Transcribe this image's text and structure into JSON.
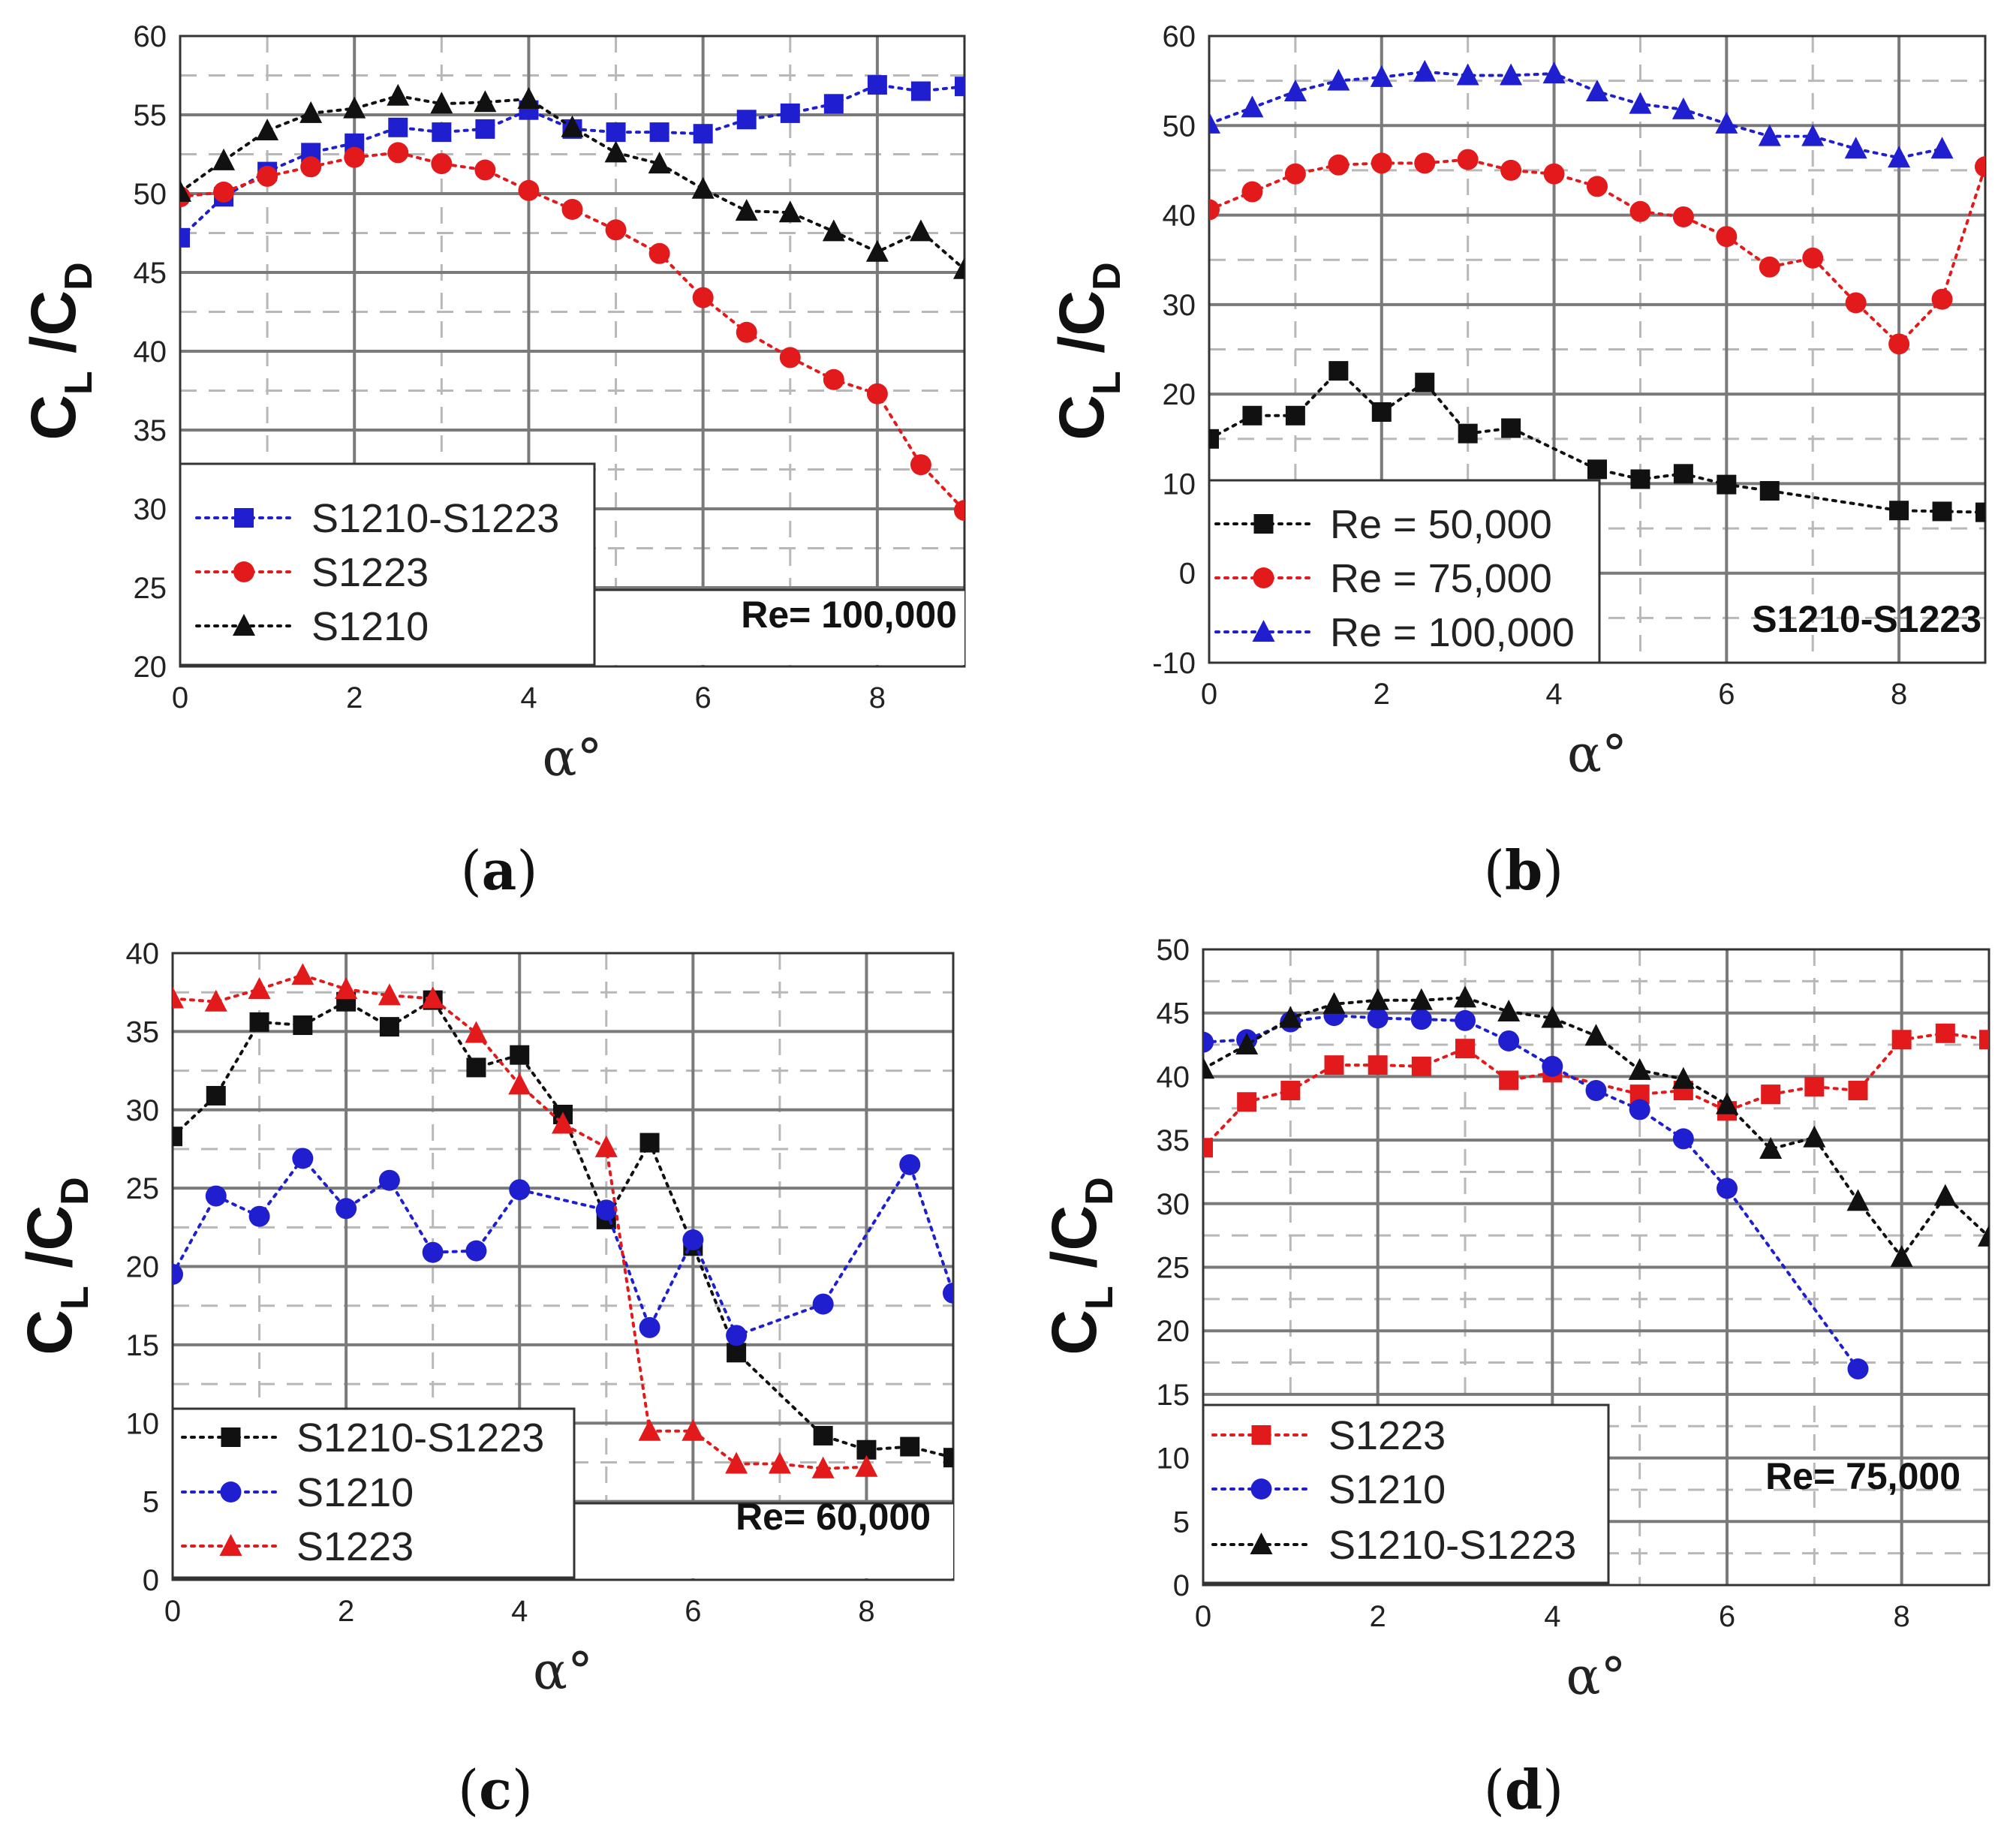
{
  "colors": {
    "black": "#111111",
    "red": "#e31a1c",
    "blue": "#1f1fd0"
  },
  "chart_data": [
    {
      "panel": "a",
      "type": "line",
      "xlabel": "α°",
      "ylabel_main": "C",
      "ylabel_sub1": "L",
      "ylabel_sep": "/C",
      "ylabel_sub2": "D",
      "xlim": [
        0,
        9
      ],
      "ylim": [
        20,
        60
      ],
      "xticks": [
        0,
        2,
        4,
        6,
        8
      ],
      "yticks": [
        20,
        25,
        30,
        35,
        40,
        45,
        50,
        55,
        60
      ],
      "annotation": "Re= 100,000",
      "series": [
        {
          "name": "S1210-S1223",
          "color": "blue",
          "marker": "square",
          "x": [
            0,
            0.5,
            1,
            1.5,
            2,
            2.5,
            3,
            3.5,
            4,
            4.5,
            5,
            5.5,
            6,
            6.5,
            7,
            7.5,
            8,
            8.5,
            9
          ],
          "y": [
            47.2,
            49.8,
            51.4,
            52.6,
            53.2,
            54.2,
            53.9,
            54.1,
            55.3,
            54.1,
            53.9,
            53.9,
            53.8,
            54.7,
            55.1,
            55.7,
            56.9,
            56.5,
            56.8
          ]
        },
        {
          "name": "S1223",
          "color": "red",
          "marker": "circle",
          "x": [
            0,
            0.5,
            1,
            1.5,
            2,
            2.5,
            3,
            3.5,
            4,
            4.5,
            5,
            5.5,
            6,
            6.5,
            7,
            7.5,
            8,
            8.5,
            9
          ],
          "y": [
            49.8,
            50.1,
            51.1,
            51.7,
            52.3,
            52.6,
            51.9,
            51.5,
            50.2,
            49.0,
            47.7,
            46.2,
            43.4,
            41.2,
            39.6,
            38.2,
            37.3,
            32.8,
            29.9
          ]
        },
        {
          "name": "S1210",
          "color": "black",
          "marker": "triangle",
          "x": [
            0,
            0.5,
            1,
            1.5,
            2,
            2.5,
            3,
            3.5,
            4,
            4.5,
            5,
            5.5,
            6,
            6.5,
            7,
            7.5,
            8,
            8.5,
            9
          ],
          "y": [
            50.1,
            52.1,
            54.0,
            55.1,
            55.4,
            56.2,
            55.7,
            55.8,
            56.0,
            54.2,
            52.6,
            51.9,
            50.3,
            48.9,
            48.8,
            47.6,
            46.3,
            47.6,
            45.2
          ]
        }
      ]
    },
    {
      "panel": "b",
      "type": "line",
      "xlabel": "α°",
      "ylabel_main": "C",
      "ylabel_sub1": "L",
      "ylabel_sep": "/C",
      "ylabel_sub2": "D",
      "xlim": [
        0,
        9
      ],
      "ylim": [
        -10,
        60
      ],
      "xticks": [
        0,
        2,
        4,
        6,
        8
      ],
      "yticks": [
        -10,
        0,
        10,
        20,
        30,
        40,
        50,
        60
      ],
      "annotation": "S1210-S1223",
      "series": [
        {
          "name": "Re = 50,000",
          "color": "black",
          "marker": "square",
          "x": [
            0,
            0.5,
            1,
            1.5,
            2,
            2.5,
            3,
            3.5,
            4.5,
            5,
            5.5,
            6,
            6.5,
            8,
            8.5,
            9
          ],
          "y": [
            15.0,
            17.6,
            17.6,
            22.6,
            18.0,
            21.3,
            15.6,
            16.2,
            11.6,
            10.5,
            11.1,
            9.9,
            9.2,
            7.0,
            6.9,
            6.8
          ]
        },
        {
          "name": "Re = 75,000",
          "color": "red",
          "marker": "circle",
          "x": [
            0,
            0.5,
            1,
            1.5,
            2,
            2.5,
            3,
            3.5,
            4,
            4.5,
            5,
            5.5,
            6,
            6.5,
            7,
            7.5,
            8,
            8.5,
            9
          ],
          "y": [
            40.6,
            42.6,
            44.6,
            45.6,
            45.8,
            45.8,
            46.2,
            45.0,
            44.6,
            43.2,
            40.4,
            39.8,
            37.6,
            34.2,
            35.2,
            30.2,
            25.6,
            30.6,
            45.4
          ]
        },
        {
          "name": "Re = 100,000",
          "color": "blue",
          "marker": "triangle",
          "x": [
            0,
            0.5,
            1,
            1.5,
            2,
            2.5,
            3,
            3.5,
            4,
            4.5,
            5,
            5.5,
            6,
            6.5,
            7,
            7.5,
            8,
            8.5
          ],
          "y": [
            50.2,
            52.0,
            53.8,
            55.0,
            55.4,
            56.0,
            55.6,
            55.6,
            55.8,
            53.8,
            52.4,
            51.8,
            50.2,
            48.8,
            48.8,
            47.4,
            46.4,
            47.4
          ]
        }
      ]
    },
    {
      "panel": "c",
      "type": "line",
      "xlabel": "α°",
      "ylabel_main": "C",
      "ylabel_sub1": "L",
      "ylabel_sep": "/C",
      "ylabel_sub2": "D",
      "xlim": [
        0,
        9
      ],
      "ylim": [
        0,
        40
      ],
      "xticks": [
        0,
        2,
        4,
        6,
        8
      ],
      "yticks": [
        0,
        5,
        10,
        15,
        20,
        25,
        30,
        35,
        40
      ],
      "annotation": "Re= 60,000",
      "series": [
        {
          "name": "S1210-S1223",
          "color": "black",
          "marker": "square",
          "x": [
            0,
            0.5,
            1,
            1.5,
            2,
            2.5,
            3,
            3.5,
            4,
            4.5,
            5,
            5.5,
            6,
            6.5,
            7.5,
            8,
            8.5,
            9
          ],
          "y": [
            28.3,
            30.9,
            35.6,
            35.4,
            36.9,
            35.3,
            37.0,
            32.7,
            33.5,
            29.7,
            23.0,
            27.9,
            21.3,
            14.5,
            9.2,
            8.3,
            8.5,
            7.8
          ]
        },
        {
          "name": "S1210",
          "color": "blue",
          "marker": "circle",
          "x": [
            0,
            0.5,
            1,
            1.5,
            2,
            2.5,
            3,
            3.5,
            4,
            5,
            5.5,
            6,
            6.5,
            7.5,
            8.5,
            9
          ],
          "y": [
            19.5,
            24.5,
            23.2,
            26.9,
            23.7,
            25.5,
            20.9,
            21.0,
            24.9,
            23.6,
            16.1,
            21.7,
            15.6,
            17.6,
            26.5,
            18.3
          ]
        },
        {
          "name": "S1223",
          "color": "red",
          "marker": "triangle",
          "x": [
            0,
            0.5,
            1,
            1.5,
            2,
            2.5,
            3,
            3.5,
            4,
            4.5,
            5,
            5.5,
            6,
            6.5,
            7,
            7.5,
            8
          ],
          "y": [
            37.1,
            36.9,
            37.7,
            38.6,
            37.7,
            37.3,
            37.1,
            34.9,
            31.6,
            29.1,
            27.6,
            9.5,
            9.5,
            7.4,
            7.4,
            7.1,
            7.2
          ]
        }
      ]
    },
    {
      "panel": "d",
      "type": "line",
      "xlabel": "α°",
      "ylabel_main": "C",
      "ylabel_sub1": "L",
      "ylabel_sep": "/C",
      "ylabel_sub2": "D",
      "xlim": [
        0,
        9
      ],
      "ylim": [
        0,
        50
      ],
      "xticks": [
        0,
        2,
        4,
        6,
        8
      ],
      "yticks": [
        0,
        5,
        10,
        15,
        20,
        25,
        30,
        35,
        40,
        45,
        50
      ],
      "annotation": "Re= 75,000",
      "series": [
        {
          "name": "S1223",
          "color": "red",
          "marker": "square",
          "x": [
            0,
            0.5,
            1,
            1.5,
            2,
            2.5,
            3,
            3.5,
            4,
            5,
            5.5,
            6,
            6.5,
            7,
            7.5,
            8,
            8.5,
            9
          ],
          "y": [
            34.4,
            38.0,
            38.9,
            40.9,
            40.9,
            40.8,
            42.2,
            39.7,
            40.3,
            38.6,
            38.9,
            37.3,
            38.6,
            39.2,
            38.9,
            42.9,
            43.4,
            42.9
          ]
        },
        {
          "name": "S1210",
          "color": "blue",
          "marker": "circle",
          "x": [
            0,
            0.5,
            1,
            1.5,
            2,
            2.5,
            3,
            3.5,
            4,
            4.5,
            5,
            5.5,
            6,
            7.5
          ],
          "y": [
            42.7,
            42.9,
            44.3,
            44.8,
            44.6,
            44.5,
            44.4,
            42.8,
            40.8,
            38.9,
            37.4,
            35.1,
            31.2,
            17.0
          ]
        },
        {
          "name": "S1210-S1223",
          "color": "black",
          "marker": "triangle",
          "x": [
            0,
            0.5,
            1,
            1.5,
            2,
            2.5,
            3,
            3.5,
            4,
            4.5,
            5,
            5.5,
            6,
            6.5,
            7,
            7.5,
            8,
            8.5,
            9
          ],
          "y": [
            40.6,
            42.5,
            44.6,
            45.7,
            46.0,
            46.0,
            46.2,
            45.1,
            44.6,
            43.2,
            40.5,
            39.8,
            37.8,
            34.3,
            35.2,
            30.2,
            25.8,
            30.6,
            27.4
          ]
        }
      ]
    }
  ]
}
